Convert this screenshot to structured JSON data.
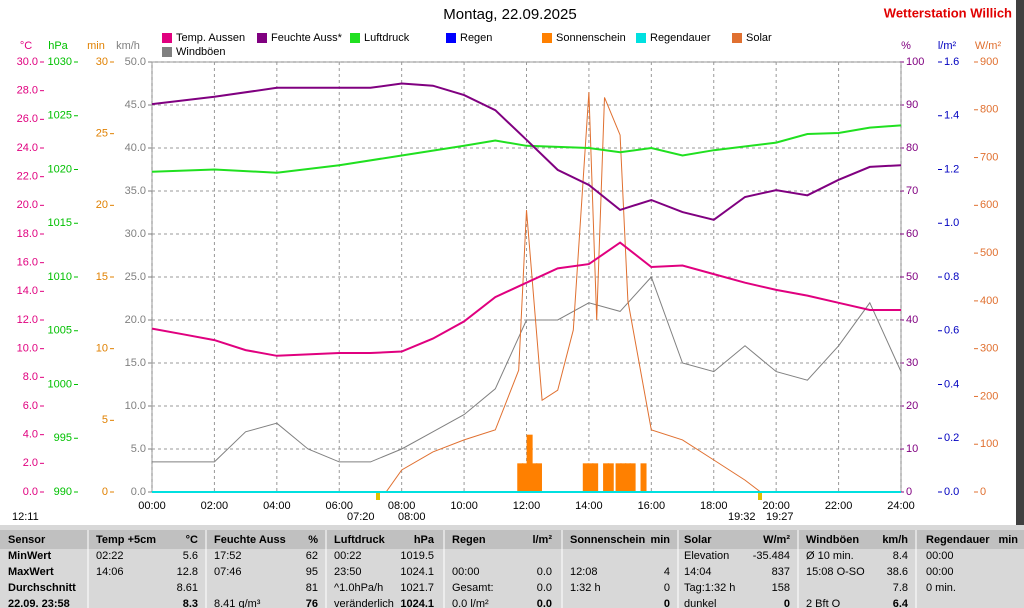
{
  "chart_data": {
    "type": "line",
    "title": "Montag, 22.09.2025",
    "subtitle": "Wetterstation Willich",
    "xlim": [
      0,
      24
    ],
    "xticks": [
      {
        "value": 0,
        "label": "00:00"
      },
      {
        "value": 2,
        "label": "02:00"
      },
      {
        "value": 4,
        "label": "04:00"
      },
      {
        "value": 6,
        "label": "06:00"
      },
      {
        "value": 8,
        "label": "08:00"
      },
      {
        "value": 10,
        "label": "10:00"
      },
      {
        "value": 12,
        "label": "12:00"
      },
      {
        "value": 14,
        "label": "14:00"
      },
      {
        "value": 16,
        "label": "16:00"
      },
      {
        "value": 18,
        "label": "18:00"
      },
      {
        "value": 20,
        "label": "20:00"
      },
      {
        "value": 22,
        "label": "22:00"
      },
      {
        "value": 24,
        "label": "24:00"
      }
    ],
    "grid": true,
    "axes": [
      {
        "label": "°C",
        "color": "#e0007f",
        "ylim": [
          0,
          30
        ],
        "yticks": [
          {
            "value": 0,
            "label": "0.0"
          },
          {
            "value": 2,
            "label": "2.0"
          },
          {
            "value": 4,
            "label": "4.0"
          },
          {
            "value": 6,
            "label": "6.0"
          },
          {
            "value": 8,
            "label": "8.0"
          },
          {
            "value": 10,
            "label": "10.0"
          },
          {
            "value": 12,
            "label": "12.0"
          },
          {
            "value": 14,
            "label": "14.0"
          },
          {
            "value": 16,
            "label": "16.0"
          },
          {
            "value": 18,
            "label": "18.0"
          },
          {
            "value": 20,
            "label": "20.0"
          },
          {
            "value": 22,
            "label": "22.0"
          },
          {
            "value": 24,
            "label": "24.0"
          },
          {
            "value": 26,
            "label": "26.0"
          },
          {
            "value": 28,
            "label": "28.0"
          },
          {
            "value": 30,
            "label": "30.0"
          }
        ]
      },
      {
        "label": "hPa",
        "color": "#00c000",
        "ylim": [
          990,
          1030
        ],
        "yticks": [
          990,
          995,
          1000,
          1005,
          1010,
          1015,
          1020,
          1025,
          1030
        ]
      },
      {
        "label": "min",
        "color": "#e08000",
        "ylim": [
          0,
          30
        ],
        "yticks": [
          0,
          5,
          10,
          15,
          20,
          25,
          30
        ]
      },
      {
        "label": "km/h",
        "color": "#808080",
        "ylim": [
          0,
          50
        ],
        "yticks": [
          {
            "value": 0,
            "label": "0.0"
          },
          {
            "value": 5,
            "label": "5.0"
          },
          {
            "value": 10,
            "label": "10.0"
          },
          {
            "value": 15,
            "label": "15.0"
          },
          {
            "value": 20,
            "label": "20.0"
          },
          {
            "value": 25,
            "label": "25.0"
          },
          {
            "value": 30,
            "label": "30.0"
          },
          {
            "value": 35,
            "label": "35.0"
          },
          {
            "value": 40,
            "label": "40.0"
          },
          {
            "value": 45,
            "label": "45.0"
          },
          {
            "value": 50,
            "label": "50.0"
          }
        ]
      },
      {
        "label": "%",
        "color": "#800080",
        "ylim": [
          0,
          100
        ],
        "yticks": [
          0,
          10,
          20,
          30,
          40,
          50,
          60,
          70,
          80,
          90,
          100
        ]
      },
      {
        "label": "l/m²",
        "color": "#0000c0",
        "ylim": [
          0,
          1.6
        ],
        "yticks": [
          {
            "value": 0,
            "label": "0.0"
          },
          {
            "value": 0.2,
            "label": "0.2"
          },
          {
            "value": 0.4,
            "label": "0.4"
          },
          {
            "value": 0.6,
            "label": "0.6"
          },
          {
            "value": 0.8,
            "label": "0.8"
          },
          {
            "value": 1.0,
            "label": "1.0"
          },
          {
            "value": 1.2,
            "label": "1.2"
          },
          {
            "value": 1.4,
            "label": "1.4"
          },
          {
            "value": 1.6,
            "label": "1.6"
          }
        ]
      },
      {
        "label": "W/m²",
        "color": "#e07030",
        "ylim": [
          0,
          900
        ],
        "yticks": [
          0,
          100,
          200,
          300,
          400,
          500,
          600,
          700,
          800,
          900
        ]
      }
    ],
    "series": [
      {
        "name": "Windböen",
        "color": "#808080",
        "kind": "line",
        "axis": "km/h",
        "x": [
          0,
          1,
          2,
          3,
          4,
          5,
          6,
          7,
          8,
          9,
          10,
          11,
          12,
          13,
          14,
          15,
          16,
          17,
          18,
          19,
          20,
          21,
          22,
          23,
          24
        ],
        "values": [
          3.5,
          3.5,
          3.5,
          7,
          8,
          5,
          3.5,
          3.5,
          5,
          7,
          9,
          12,
          20,
          20,
          22,
          21,
          25,
          15,
          14,
          17,
          14,
          13,
          17,
          22,
          14
        ]
      },
      {
        "name": "Sonnenschein",
        "color": "#ff8000",
        "kind": "bar",
        "axis": "min",
        "x": [
          11.8,
          11.95,
          12.1,
          12.25,
          12.4,
          13.9,
          14.05,
          14.2,
          14.55,
          14.7,
          14.95,
          15.1,
          15.25,
          15.4,
          15.75
        ],
        "values": [
          2,
          2,
          4,
          2,
          2,
          2,
          2,
          2,
          2,
          2,
          2,
          2,
          2,
          2,
          2
        ]
      },
      {
        "name": "Solar",
        "color": "#e07030",
        "kind": "line",
        "axis": "W/m²",
        "x": [
          0,
          7.5,
          8,
          9,
          10,
          11,
          11.75,
          12,
          12.5,
          13,
          13.5,
          14,
          14.25,
          14.5,
          15,
          15.25,
          16,
          17,
          18,
          19,
          19.5,
          24
        ],
        "values": [
          0,
          0,
          46,
          84,
          109,
          130,
          255,
          590,
          192,
          213,
          339,
          837,
          360,
          826,
          747,
          400,
          130,
          109,
          67,
          25,
          0,
          0
        ]
      },
      {
        "name": "Regen",
        "color": "#0000ff",
        "kind": "line",
        "axis": "l/m²",
        "x": [
          0,
          24
        ],
        "values": [
          0,
          0
        ]
      },
      {
        "name": "Regendauer",
        "color": "#00e0e0",
        "kind": "line",
        "axis": "min",
        "x": [
          0,
          24
        ],
        "values": [
          0,
          0
        ]
      },
      {
        "name": "Luftdruck",
        "color": "#20e020",
        "kind": "line",
        "axis": "hPa",
        "x": [
          0,
          2,
          4,
          6,
          8,
          10,
          11,
          12,
          14,
          15,
          16,
          17,
          18,
          20,
          21,
          22,
          23,
          24
        ],
        "values": [
          1019.8,
          1020.0,
          1019.7,
          1020.4,
          1021.3,
          1022.2,
          1022.7,
          1022.2,
          1022.0,
          1021.6,
          1022.0,
          1021.3,
          1021.8,
          1022.5,
          1023.3,
          1023.4,
          1023.9,
          1024.1
        ]
      },
      {
        "name": "Feuchte Auss*",
        "color": "#800080",
        "kind": "line",
        "axis": "%",
        "x": [
          0,
          2,
          4,
          7,
          8,
          9,
          10,
          11,
          12,
          13,
          14,
          15,
          16,
          17,
          18,
          19,
          20,
          21,
          22,
          23,
          24
        ],
        "values": [
          90.2,
          91.9,
          94,
          94,
          95,
          94.5,
          92.3,
          88.8,
          81.9,
          74.9,
          71.4,
          65.6,
          67.9,
          65.1,
          63.3,
          68.6,
          70.2,
          69,
          72.6,
          75.6,
          76
        ]
      },
      {
        "name": "Temp. Aussen",
        "color": "#e0007f",
        "kind": "line",
        "axis": "°C",
        "x": [
          0,
          1,
          2,
          3,
          4,
          5,
          6,
          7,
          8,
          9,
          10,
          11,
          12,
          13,
          14,
          15,
          16,
          17,
          18,
          19,
          20,
          21,
          22,
          23,
          24
        ],
        "values": [
          11.4,
          11.0,
          10.6,
          9.9,
          9.5,
          9.6,
          9.7,
          9.7,
          9.8,
          10.7,
          11.9,
          13.6,
          14.6,
          15.6,
          15.9,
          17.4,
          15.7,
          15.8,
          15.2,
          14.6,
          14.1,
          13.7,
          13.2,
          12.7,
          12.7
        ]
      }
    ],
    "legend_order": [
      "Temp. Aussen",
      "Feuchte Auss*",
      "Luftdruck",
      "Regen",
      "Sonnenschein",
      "Regendauer",
      "Solar",
      "Windböen"
    ],
    "annotations": [
      "12:11",
      "07:20",
      "08:00",
      "19:32",
      "19:27"
    ]
  },
  "table": {
    "header": [
      "Sensor",
      "Temp +5cm",
      "°C",
      "Feuchte Auss",
      "%",
      "Luftdruck",
      "hPa",
      "Regen",
      "l/m²",
      "Sonnenschein",
      "min",
      "Solar",
      "W/m²",
      "Windböen",
      "km/h",
      "Regendauer",
      "min"
    ],
    "rows": [
      [
        "MinWert",
        "02:22",
        "5.6",
        "17:52",
        "62",
        "00:22",
        "1019.5",
        null,
        null,
        null,
        null,
        "Elevation",
        "-35.484",
        "Ø 10 min.",
        "8.4",
        "00:00",
        null
      ],
      [
        "MaxWert",
        "14:06",
        "12.8",
        "07:46",
        "95",
        "23:50",
        "1024.1",
        "00:00",
        "0.0",
        "12:08",
        "4",
        "14:04",
        "837",
        "15:08 O-SO",
        "38.6",
        "00:00",
        null
      ],
      [
        "Durchschnitt",
        null,
        "8.61",
        null,
        "81",
        "^1.0hPa/h",
        "1021.7",
        "Gesamt:",
        "0.0",
        "1:32 h",
        "0",
        "Tag:1:32 h",
        "158",
        null,
        "7.8",
        "0 min.",
        null
      ],
      [
        "22.09. 23:58",
        null,
        "8.3",
        "8.41 g/m³",
        "76",
        "veränderlich",
        "1024.1",
        "0.0 l/m²",
        "0.0",
        null,
        "0",
        "dunkel",
        "0",
        "2 Bft O",
        "6.4",
        null,
        null
      ]
    ]
  }
}
